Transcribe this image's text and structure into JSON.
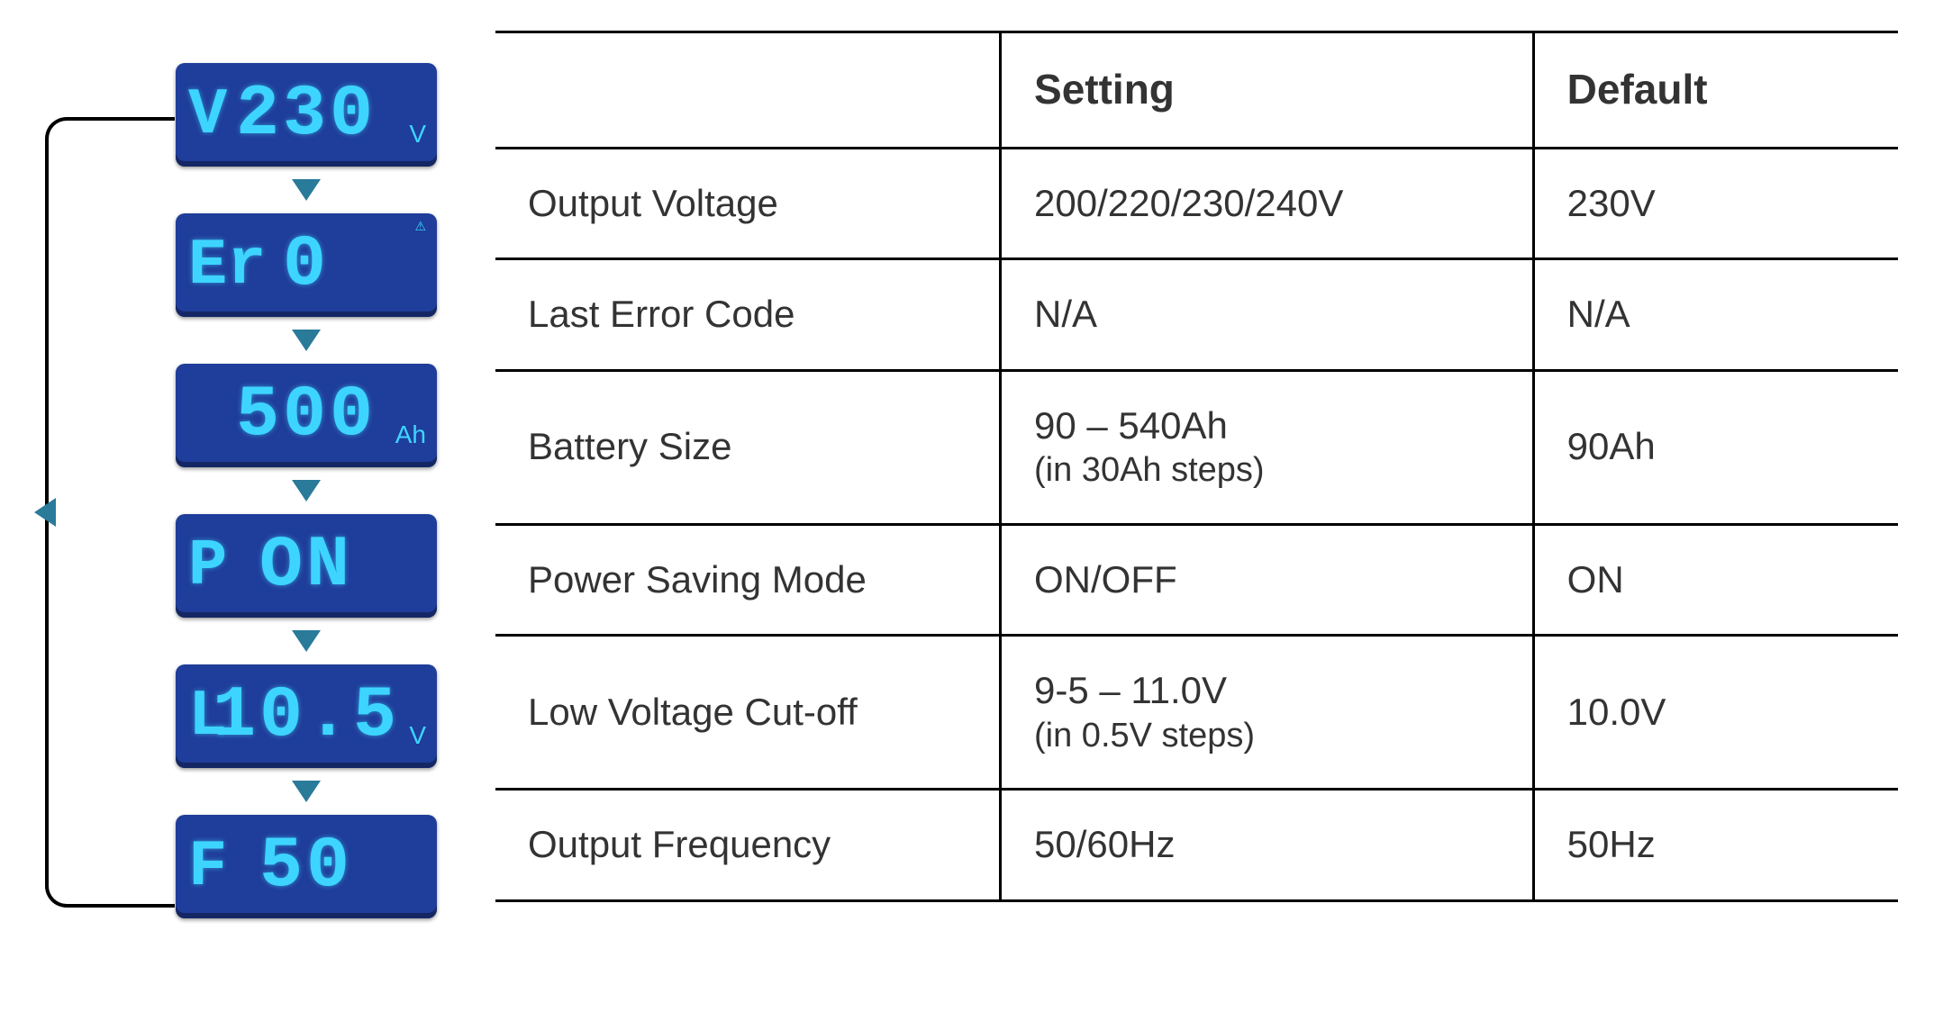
{
  "lcds": [
    {
      "prefix": "V",
      "value": "230",
      "unit": "V",
      "tiny": ""
    },
    {
      "prefix": "Er",
      "value": "0",
      "unit": "",
      "tiny": "⚠"
    },
    {
      "prefix": "",
      "value": "500",
      "unit": "Ah",
      "tiny": ""
    },
    {
      "prefix": "P",
      "value": "ON",
      "unit": "",
      "tiny": ""
    },
    {
      "prefix": "L",
      "value": "10.5",
      "unit": "V",
      "tiny": ""
    },
    {
      "prefix": "F",
      "value": "50",
      "unit": "",
      "tiny": ""
    }
  ],
  "table": {
    "headers": {
      "param": "",
      "setting": "Setting",
      "default": "Default"
    },
    "rows": [
      {
        "param": "Output Voltage",
        "setting": "200/220/230/240V",
        "setting_sub": "",
        "default": "230V"
      },
      {
        "param": "Last Error Code",
        "setting": "N/A",
        "setting_sub": "",
        "default": "N/A"
      },
      {
        "param": "Battery Size",
        "setting": "90 – 540Ah",
        "setting_sub": "(in 30Ah steps)",
        "default": "90Ah"
      },
      {
        "param": "Power Saving Mode",
        "setting": "ON/OFF",
        "setting_sub": "",
        "default": "ON"
      },
      {
        "param": "Low Voltage Cut-off",
        "setting": "9-5 – 11.0V",
        "setting_sub": "(in 0.5V steps)",
        "default": "10.0V"
      },
      {
        "param": "Output Frequency",
        "setting": "50/60Hz",
        "setting_sub": "",
        "default": "50Hz"
      }
    ]
  }
}
